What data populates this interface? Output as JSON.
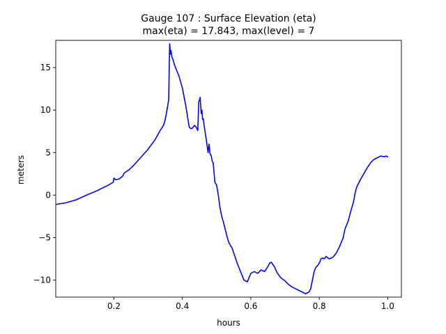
{
  "chart_data": {
    "type": "line",
    "title_line1": "Gauge 107 : Surface Elevation (eta)",
    "title_line2": "max(eta) =  17.843,    max(level) = 7",
    "xlabel": "hours",
    "ylabel": "meters",
    "xlim": [
      0.03,
      1.04
    ],
    "ylim": [
      -12.0,
      18.2
    ],
    "x_ticks": [
      0.2,
      0.4,
      0.6,
      0.8,
      1.0
    ],
    "x_tick_labels": [
      "0.2",
      "0.4",
      "0.6",
      "0.8",
      "1.0"
    ],
    "y_ticks": [
      -10,
      -5,
      0,
      5,
      10,
      15
    ],
    "y_tick_labels": [
      "−10",
      "−5",
      "0",
      "5",
      "10",
      "15"
    ],
    "series": [
      {
        "name": "eta",
        "color": "#0000ff",
        "x": [
          0.03,
          0.06,
          0.09,
          0.12,
          0.15,
          0.18,
          0.198,
          0.2,
          0.205,
          0.215,
          0.225,
          0.23,
          0.245,
          0.26,
          0.28,
          0.3,
          0.32,
          0.335,
          0.345,
          0.35,
          0.355,
          0.36,
          0.362,
          0.363,
          0.365,
          0.367,
          0.369,
          0.372,
          0.378,
          0.385,
          0.39,
          0.4,
          0.41,
          0.42,
          0.425,
          0.43,
          0.435,
          0.44,
          0.445,
          0.448,
          0.45,
          0.452,
          0.455,
          0.457,
          0.459,
          0.461,
          0.465,
          0.47,
          0.475,
          0.478,
          0.481,
          0.484,
          0.487,
          0.49,
          0.495,
          0.5,
          0.505,
          0.51,
          0.515,
          0.52,
          0.525,
          0.53,
          0.535,
          0.54,
          0.545,
          0.55,
          0.56,
          0.57,
          0.58,
          0.59,
          0.6,
          0.61,
          0.62,
          0.625,
          0.63,
          0.64,
          0.65,
          0.655,
          0.66,
          0.67,
          0.675,
          0.68,
          0.685,
          0.69,
          0.7,
          0.71,
          0.72,
          0.73,
          0.74,
          0.75,
          0.76,
          0.77,
          0.775,
          0.78,
          0.785,
          0.79,
          0.795,
          0.8,
          0.805,
          0.81,
          0.815,
          0.82,
          0.825,
          0.83,
          0.84,
          0.85,
          0.86,
          0.87,
          0.875,
          0.88,
          0.885,
          0.89,
          0.895,
          0.9,
          0.905,
          0.91,
          0.92,
          0.93,
          0.94,
          0.95,
          0.96,
          0.97,
          0.975,
          0.98,
          0.99,
          0.995,
          1.0
        ],
        "y": [
          -1.1,
          -0.9,
          -0.55,
          0.0,
          0.5,
          1.1,
          1.5,
          2.0,
          1.8,
          1.9,
          2.2,
          2.6,
          3.0,
          3.6,
          4.5,
          5.4,
          6.5,
          7.6,
          8.2,
          8.9,
          10.0,
          11.2,
          16.0,
          17.8,
          16.6,
          17.0,
          16.3,
          16.0,
          15.2,
          14.5,
          14.0,
          12.6,
          10.5,
          8.0,
          7.8,
          7.9,
          8.2,
          8.0,
          7.6,
          11.0,
          11.2,
          11.5,
          9.6,
          10.0,
          8.9,
          9.0,
          7.8,
          6.5,
          5.0,
          6.0,
          4.8,
          4.7,
          4.0,
          3.8,
          1.5,
          1.2,
          0.0,
          -1.5,
          -2.5,
          -3.2,
          -4.0,
          -4.8,
          -5.5,
          -5.9,
          -6.2,
          -6.8,
          -8.0,
          -9.0,
          -10.0,
          -10.2,
          -9.2,
          -9.0,
          -9.2,
          -9.0,
          -8.8,
          -9.0,
          -8.4,
          -8.0,
          -7.9,
          -8.5,
          -9.0,
          -9.3,
          -9.6,
          -9.8,
          -10.1,
          -10.5,
          -10.8,
          -11.0,
          -11.2,
          -11.4,
          -11.6,
          -11.4,
          -11.0,
          -10.0,
          -9.0,
          -8.5,
          -8.3,
          -8.0,
          -7.5,
          -7.4,
          -7.5,
          -7.2,
          -7.4,
          -7.5,
          -7.3,
          -6.8,
          -6.0,
          -5.0,
          -4.0,
          -3.5,
          -3.0,
          -2.2,
          -1.5,
          -0.8,
          0.3,
          1.0,
          1.8,
          2.5,
          3.2,
          3.8,
          4.2,
          4.4,
          4.5,
          4.6,
          4.5,
          4.6,
          4.5
        ]
      }
    ]
  }
}
